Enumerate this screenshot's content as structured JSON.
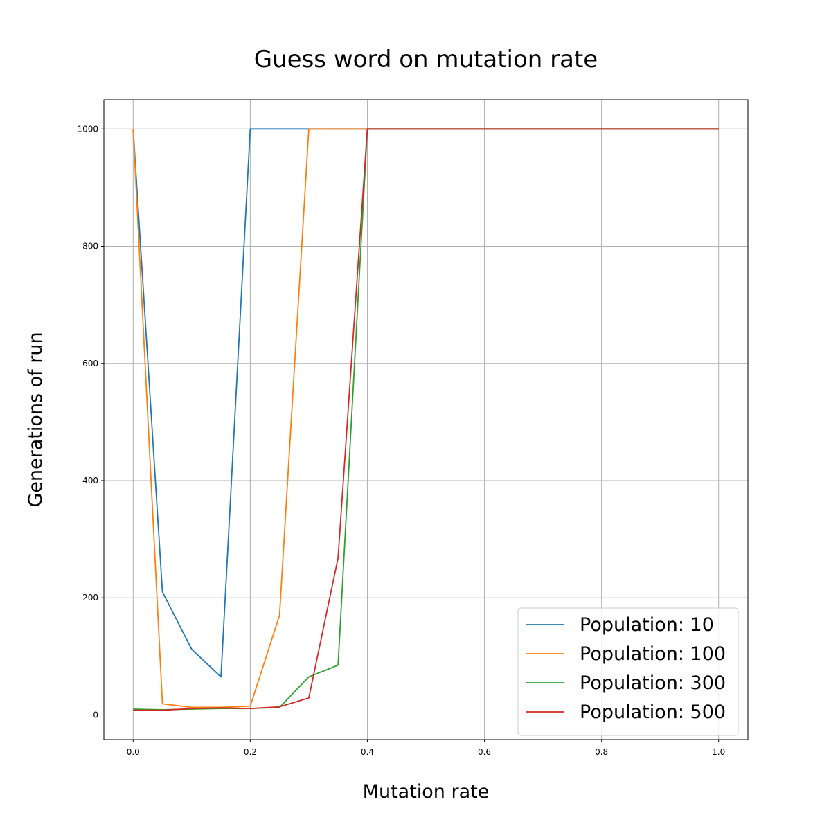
{
  "chart_data": {
    "type": "line",
    "title": "Guess word on mutation rate",
    "xlabel": "Mutation rate",
    "ylabel": "Generations of run",
    "xlim": [
      -0.05,
      1.05
    ],
    "ylim": [
      -42,
      1050
    ],
    "xticks": [
      0.0,
      0.2,
      0.4,
      0.6,
      0.8,
      1.0
    ],
    "xtick_labels": [
      "0.0",
      "0.2",
      "0.4",
      "0.6",
      "0.8",
      "1.0"
    ],
    "yticks": [
      0,
      200,
      400,
      600,
      800,
      1000
    ],
    "ytick_labels": [
      "0",
      "200",
      "400",
      "600",
      "800",
      "1000"
    ],
    "grid": true,
    "legend_position": "lower-right",
    "x": [
      0.0,
      0.05,
      0.1,
      0.15,
      0.2,
      0.25,
      0.3,
      0.35,
      0.4,
      0.45,
      0.5,
      0.55,
      0.6,
      0.65,
      0.7,
      0.75,
      0.8,
      0.85,
      0.9,
      0.95,
      1.0
    ],
    "series": [
      {
        "name": "Population: 10",
        "color": "#1f77b4",
        "values": [
          1000,
          210,
          112,
          65,
          1000,
          1000,
          1000,
          1000,
          1000,
          1000,
          1000,
          1000,
          1000,
          1000,
          1000,
          1000,
          1000,
          1000,
          1000,
          1000,
          1000
        ]
      },
      {
        "name": "Population: 100",
        "color": "#ff7f0e",
        "values": [
          1000,
          19,
          13,
          13,
          15,
          170,
          1000,
          1000,
          1000,
          1000,
          1000,
          1000,
          1000,
          1000,
          1000,
          1000,
          1000,
          1000,
          1000,
          1000,
          1000
        ]
      },
      {
        "name": "Population: 300",
        "color": "#2ca02c",
        "values": [
          10,
          9,
          10,
          11,
          11,
          13,
          65,
          85,
          1000,
          1000,
          1000,
          1000,
          1000,
          1000,
          1000,
          1000,
          1000,
          1000,
          1000,
          1000,
          1000
        ]
      },
      {
        "name": "Population: 500",
        "color": "#d62728",
        "values": [
          8,
          8,
          11,
          12,
          11,
          14,
          29,
          268,
          1000,
          1000,
          1000,
          1000,
          1000,
          1000,
          1000,
          1000,
          1000,
          1000,
          1000,
          1000,
          1000
        ]
      }
    ]
  }
}
